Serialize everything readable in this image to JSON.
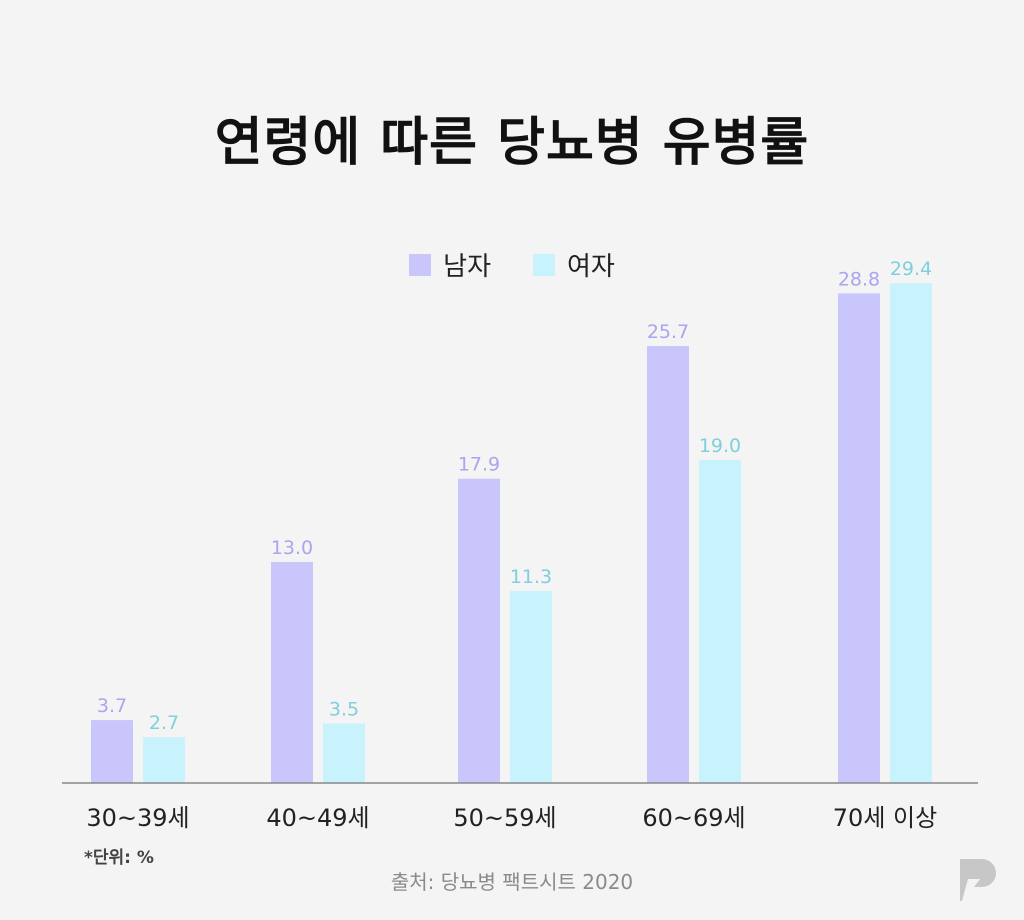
{
  "title": "연령에 따른 당뇨병 유병률",
  "unit_note": "*단위: %",
  "source": "출처: 당뇨병 팩트시트 2020",
  "colors": {
    "male": "#c9c6fc",
    "female": "#c8f3fc",
    "male_label": "#a9a5ee",
    "female_label": "#7fcfdc",
    "axis": "#888888"
  },
  "icons": {
    "brand_logo": "pill-bolt-logo-icon"
  },
  "chart_data": {
    "type": "bar",
    "categories": [
      "30~39세",
      "40~49세",
      "50~59세",
      "60~69세",
      "70세 이상"
    ],
    "series": [
      {
        "name": "남자",
        "values": [
          3.7,
          13.0,
          17.9,
          25.7,
          28.8
        ]
      },
      {
        "name": "여자",
        "values": [
          2.7,
          3.5,
          11.3,
          19.0,
          29.4
        ]
      }
    ],
    "ylim": [
      0,
      30
    ],
    "legend": "top-center",
    "grid": false,
    "title": "연령에 따른 당뇨병 유병률"
  }
}
